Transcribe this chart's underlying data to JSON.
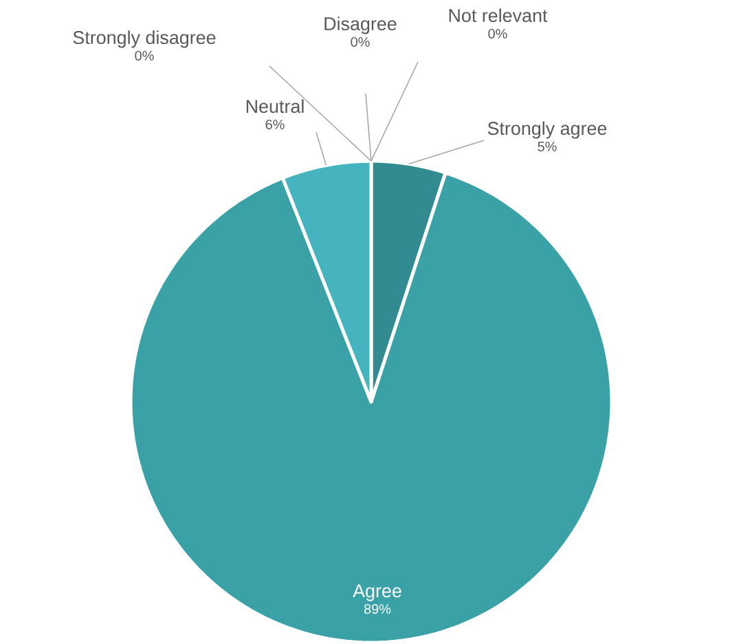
{
  "chart_data": {
    "type": "pie",
    "categories": [
      "Strongly agree",
      "Agree",
      "Neutral",
      "Strongly disagree",
      "Disagree",
      "Not relevant"
    ],
    "values": [
      5,
      89,
      6,
      0,
      0,
      0
    ],
    "value_labels": [
      "5%",
      "89%",
      "6%",
      "0%",
      "0%",
      "0%"
    ],
    "colors": [
      "#318b90",
      "#3aa2a7",
      "#45b4be",
      "#5fc3cc",
      "#2a7a80",
      "#7fd0d6"
    ]
  }
}
